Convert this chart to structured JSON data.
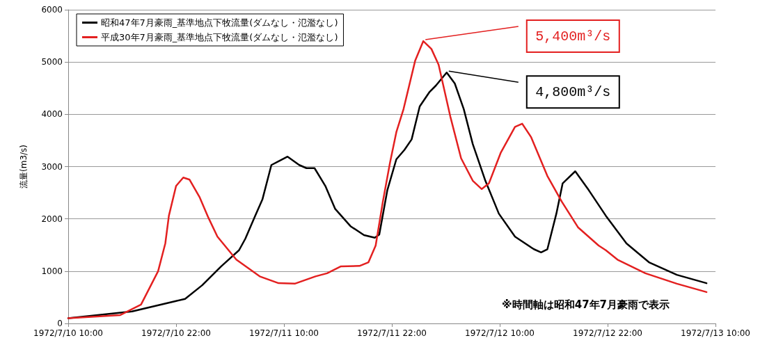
{
  "chart_data": {
    "type": "line",
    "ylabel": "流量(m3/s)",
    "xlim": [
      "1972-07-10T10:00",
      "1972-07-13T10:00"
    ],
    "xticks": [
      {
        "value": "1972-07-10T10:00",
        "label": "1972/7/10 10:00"
      },
      {
        "value": "1972-07-10T22:00",
        "label": "1972/7/10 22:00"
      },
      {
        "value": "1972-07-11T10:00",
        "label": "1972/7/11 10:00"
      },
      {
        "value": "1972-07-11T22:00",
        "label": "1972/7/11 22:00"
      },
      {
        "value": "1972-07-12T10:00",
        "label": "1972/7/12 10:00"
      },
      {
        "value": "1972-07-12T22:00",
        "label": "1972/7/12 22:00"
      },
      {
        "value": "1972-07-13T10:00",
        "label": "1972/7/13 10:00"
      }
    ],
    "ylim": [
      0,
      6000
    ],
    "yticks": [
      0,
      1000,
      2000,
      3000,
      4000,
      5000,
      6000
    ],
    "grid": "y",
    "legend": "top left",
    "marker": "none",
    "line_style": "solid",
    "series": [
      {
        "name": "昭和47年7月豪雨_基準地点下牧流量(ダムなし・氾濫なし)",
        "color": "#000000",
        "x": [
          "1972-07-10T10:00",
          "1972-07-10T17:06",
          "1972-07-10T22:00",
          "1972-07-10T23:00",
          "1972-07-11T00:54",
          "1972-07-11T03:00",
          "1972-07-11T05:00",
          "1972-07-11T05:42",
          "1972-07-11T06:48",
          "1972-07-11T07:36",
          "1972-07-11T08:36",
          "1972-07-11T09:24",
          "1972-07-11T10:24",
          "1972-07-11T11:42",
          "1972-07-11T12:30",
          "1972-07-11T13:24",
          "1972-07-11T14:36",
          "1972-07-11T15:42",
          "1972-07-11T17:24",
          "1972-07-11T18:54",
          "1972-07-11T20:06",
          "1972-07-11T20:36",
          "1972-07-11T21:30",
          "1972-07-11T22:30",
          "1972-07-11T23:24",
          "1972-07-12T00:12",
          "1972-07-12T01:06",
          "1972-07-12T02:12",
          "1972-07-12T02:54",
          "1972-07-12T04:06",
          "1972-07-12T05:00",
          "1972-07-12T06:00",
          "1972-07-12T07:00",
          "1972-07-12T08:24",
          "1972-07-12T09:54",
          "1972-07-12T11:42",
          "1972-07-12T13:48",
          "1972-07-12T14:36",
          "1972-07-12T15:18",
          "1972-07-12T16:18",
          "1972-07-12T17:00",
          "1972-07-12T18:24",
          "1972-07-12T19:54",
          "1972-07-12T21:48",
          "1972-07-13T00:06",
          "1972-07-13T02:36",
          "1972-07-13T05:42",
          "1972-07-13T09:00"
        ],
        "values": [
          100,
          230,
          430,
          470,
          730,
          1090,
          1400,
          1620,
          2060,
          2370,
          3030,
          3100,
          3190,
          3030,
          2970,
          2970,
          2630,
          2190,
          1860,
          1690,
          1640,
          1700,
          2550,
          3140,
          3320,
          3520,
          4150,
          4430,
          4550,
          4800,
          4590,
          4100,
          3430,
          2730,
          2100,
          1660,
          1420,
          1360,
          1420,
          2100,
          2680,
          2910,
          2550,
          2060,
          1530,
          1170,
          930,
          770
        ]
      },
      {
        "name": "平成30年7月豪雨_基準地点下牧流量(ダムなし・氾濫なし)",
        "color": "#e32020",
        "x": [
          "1972-07-10T10:00",
          "1972-07-10T15:48",
          "1972-07-10T18:06",
          "1972-07-10T19:12",
          "1972-07-10T20:00",
          "1972-07-10T20:48",
          "1972-07-10T21:12",
          "1972-07-10T22:00",
          "1972-07-10T22:48",
          "1972-07-10T23:30",
          "1972-07-11T00:36",
          "1972-07-11T01:36",
          "1972-07-11T02:36",
          "1972-07-11T04:42",
          "1972-07-11T07:18",
          "1972-07-11T09:24",
          "1972-07-11T11:12",
          "1972-07-11T13:30",
          "1972-07-11T14:48",
          "1972-07-11T16:18",
          "1972-07-11T18:24",
          "1972-07-11T19:24",
          "1972-07-11T20:12",
          "1972-07-11T21:00",
          "1972-07-11T21:48",
          "1972-07-11T22:30",
          "1972-07-11T23:18",
          "1972-07-12T00:36",
          "1972-07-12T01:30",
          "1972-07-12T02:24",
          "1972-07-12T03:12",
          "1972-07-12T04:30",
          "1972-07-12T05:42",
          "1972-07-12T07:00",
          "1972-07-12T08:00",
          "1972-07-12T08:48",
          "1972-07-12T10:06",
          "1972-07-12T11:42",
          "1972-07-12T12:30",
          "1972-07-12T13:30",
          "1972-07-12T15:18",
          "1972-07-12T16:54",
          "1972-07-12T18:42",
          "1972-07-12T21:00",
          "1972-07-12T21:48",
          "1972-07-12T23:06",
          "1972-07-13T02:12",
          "1972-07-13T05:42",
          "1972-07-13T09:00"
        ],
        "values": [
          100,
          160,
          360,
          730,
          1000,
          1530,
          2060,
          2630,
          2790,
          2750,
          2420,
          2020,
          1660,
          1220,
          900,
          770,
          760,
          900,
          960,
          1090,
          1100,
          1170,
          1490,
          2330,
          3080,
          3660,
          4100,
          5030,
          5400,
          5250,
          4950,
          3960,
          3160,
          2730,
          2570,
          2680,
          3260,
          3760,
          3820,
          3560,
          2820,
          2330,
          1840,
          1490,
          1400,
          1220,
          960,
          760,
          600
        ]
      }
    ],
    "annotations": [
      {
        "text": "5,400m³/s",
        "x": "1972-07-12T01:30",
        "y": 5400
      },
      {
        "text": "4,800m³/s",
        "x": "1972-07-12T04:06",
        "y": 4800
      },
      "※時間軸は昭和47年7月豪雨で表示"
    ]
  }
}
